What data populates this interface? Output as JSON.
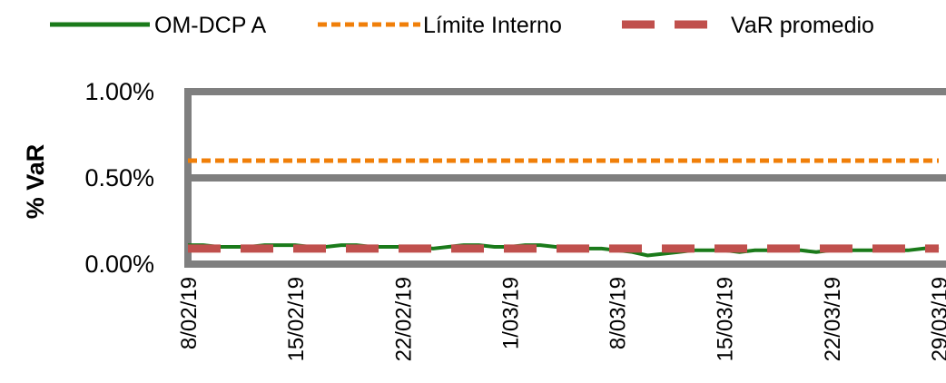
{
  "chart_data": {
    "type": "line",
    "title": "",
    "xlabel": "",
    "ylabel": "% VaR",
    "ylim": [
      0,
      1.0
    ],
    "y_ticks": [
      "0.00%",
      "0.50%",
      "1.00%"
    ],
    "y_tick_values": [
      0,
      0.5,
      1.0
    ],
    "x": [
      "8/02/19",
      "9/02/19",
      "10/02/19",
      "11/02/19",
      "12/02/19",
      "13/02/19",
      "14/02/19",
      "15/02/19",
      "16/02/19",
      "17/02/19",
      "18/02/19",
      "19/02/19",
      "20/02/19",
      "21/02/19",
      "22/02/19",
      "23/02/19",
      "24/02/19",
      "25/02/19",
      "26/02/19",
      "27/02/19",
      "28/02/19",
      "1/03/19",
      "2/03/19",
      "3/03/19",
      "4/03/19",
      "5/03/19",
      "6/03/19",
      "7/03/19",
      "8/03/19",
      "9/03/19",
      "10/03/19",
      "11/03/19",
      "12/03/19",
      "13/03/19",
      "14/03/19",
      "15/03/19",
      "16/03/19",
      "17/03/19",
      "18/03/19",
      "19/03/19",
      "20/03/19",
      "21/03/19",
      "22/03/19",
      "23/03/19",
      "24/03/19",
      "25/03/19",
      "26/03/19",
      "27/03/19",
      "28/03/19",
      "29/03/19"
    ],
    "x_tick_labels": [
      "8/02/19",
      "15/02/19",
      "22/02/19",
      "1/03/19",
      "8/03/19",
      "15/03/19",
      "22/03/19",
      "29/03/19"
    ],
    "x_tick_indices": [
      0,
      7,
      14,
      21,
      28,
      35,
      42,
      49
    ],
    "series": [
      {
        "name": "OM-DCP A",
        "color": "#1a7a1a",
        "style": "solid",
        "values": [
          0.11,
          0.11,
          0.1,
          0.1,
          0.1,
          0.11,
          0.11,
          0.11,
          0.1,
          0.1,
          0.11,
          0.11,
          0.1,
          0.1,
          0.1,
          0.1,
          0.09,
          0.1,
          0.11,
          0.11,
          0.1,
          0.1,
          0.11,
          0.11,
          0.1,
          0.1,
          0.09,
          0.09,
          0.08,
          0.07,
          0.05,
          0.06,
          0.07,
          0.08,
          0.08,
          0.08,
          0.07,
          0.08,
          0.08,
          0.08,
          0.08,
          0.07,
          0.08,
          0.08,
          0.08,
          0.08,
          0.08,
          0.08,
          0.09,
          0.1
        ]
      },
      {
        "name": "Límite Interno",
        "color": "#f07f09",
        "style": "dashed",
        "values": "constant",
        "value": 0.6
      },
      {
        "name": "VaR promedio",
        "color": "#c0504d",
        "style": "longdash",
        "values": "constant",
        "value": 0.09
      }
    ],
    "legend_position": "top",
    "grid": "horizontal at 0.50% and 1.00%"
  }
}
